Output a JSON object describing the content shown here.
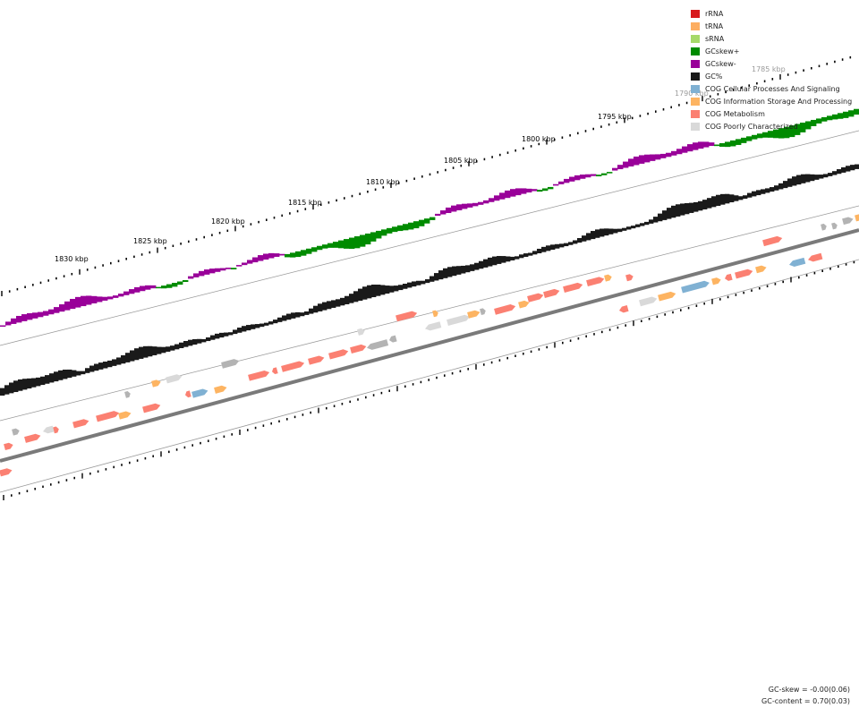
{
  "ticks": {
    "labels": [
      "1785 kbp",
      "1790 kbp",
      "1795 kbp",
      "1800 kbp",
      "1805 kbp",
      "1810 kbp",
      "1815 kbp",
      "1820 kbp",
      "1825 kbp",
      "1830 kbp"
    ],
    "faded": [
      true,
      true,
      false,
      false,
      false,
      false,
      false,
      false,
      false,
      false
    ]
  },
  "legend": {
    "items": [
      {
        "label": "rRNA",
        "color": "#d7191c"
      },
      {
        "label": "tRNA",
        "color": "#fdae61"
      },
      {
        "label": "sRNA",
        "color": "#a6d96a"
      },
      {
        "label": "GCskew+",
        "color": "#008b00"
      },
      {
        "label": "GCskew-",
        "color": "#990099"
      },
      {
        "label": "GC%",
        "color": "#1a1a1a"
      },
      {
        "label": "COG Cellular Processes And Signaling",
        "color": "#80b1d3"
      },
      {
        "label": "COG Information Storage And Processing",
        "color": "#fdb462"
      },
      {
        "label": "COG Metabolism",
        "color": "#fb8072"
      },
      {
        "label": "COG Poorly Characterized",
        "color": "#d9d9d9"
      }
    ]
  },
  "stats": {
    "gc_skew": "GC-skew = -0.00(0.06)",
    "gc_content": "GC-content = 0.70(0.03)"
  }
}
